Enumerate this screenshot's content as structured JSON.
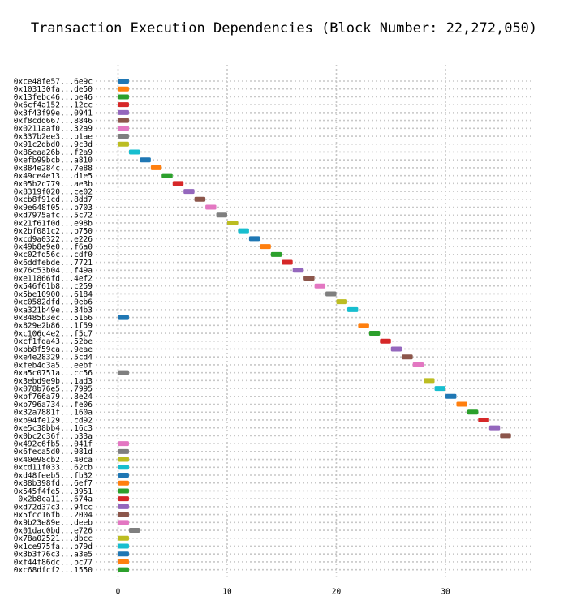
{
  "chart_data": {
    "type": "gantt",
    "title": "Transaction Execution Dependencies (Block Number: 22,272,050)",
    "xlabel": "",
    "ylabel": "",
    "xlim": [
      0,
      38
    ],
    "x_ticks": [
      0,
      10,
      20,
      30
    ],
    "grid": true,
    "colors": [
      "#1f77b4",
      "#ff7f0e",
      "#2ca02c",
      "#d62728",
      "#9467bd",
      "#8c564b",
      "#e377c2",
      "#7f7f7f",
      "#bcbd22",
      "#17becf"
    ],
    "bar_width": 1,
    "transactions": [
      {
        "label": "0xce48fe57...6e9c",
        "start": 0
      },
      {
        "label": "0x103130fa...de50",
        "start": 0
      },
      {
        "label": "0x13febc46...be46",
        "start": 0
      },
      {
        "label": "0x6cf4a152...12cc",
        "start": 0
      },
      {
        "label": "0x3f43f99e...0941",
        "start": 0
      },
      {
        "label": "0xf8cdd667...8846",
        "start": 0
      },
      {
        "label": "0x0211aaf0...32a9",
        "start": 0
      },
      {
        "label": "0x337b2ee3...b1ae",
        "start": 0
      },
      {
        "label": "0x91c2dbd0...9c3d",
        "start": 0
      },
      {
        "label": "0x86eaa26b...f2a9",
        "start": 1
      },
      {
        "label": "0xefb99bcb...a810",
        "start": 2
      },
      {
        "label": "0x884e284c...7e88",
        "start": 3
      },
      {
        "label": "0x49ce4e13...d1e5",
        "start": 4
      },
      {
        "label": "0x05b2c779...ae3b",
        "start": 5
      },
      {
        "label": "0x8319f020...ce02",
        "start": 6
      },
      {
        "label": "0xcb8f91cd...8dd7",
        "start": 7
      },
      {
        "label": "0x9e648f05...b703",
        "start": 8
      },
      {
        "label": "0xd7975afc...5c72",
        "start": 9
      },
      {
        "label": "0x21f61f0d...e98b",
        "start": 10
      },
      {
        "label": "0x2bf081c2...b750",
        "start": 11
      },
      {
        "label": "0xcd9a0322...e226",
        "start": 12
      },
      {
        "label": "0x49b8e9e0...f6a0",
        "start": 13
      },
      {
        "label": "0xc02fd56c...cdf0",
        "start": 14
      },
      {
        "label": "0x6ddfebde...7721",
        "start": 15
      },
      {
        "label": "0x76c53b04...f49a",
        "start": 16
      },
      {
        "label": "0xe11866fd...4ef2",
        "start": 17
      },
      {
        "label": "0x546f61b8...c259",
        "start": 18
      },
      {
        "label": "0x5be10900...6184",
        "start": 19
      },
      {
        "label": "0xc0582dfd...0eb6",
        "start": 20
      },
      {
        "label": "0xa321b49e...34b3",
        "start": 21
      },
      {
        "label": "0x8485b3ec...5166",
        "start": 0
      },
      {
        "label": "0x829e2b86...1f59",
        "start": 22
      },
      {
        "label": "0xc106c4e2...f5c7",
        "start": 23
      },
      {
        "label": "0xcf1fda43...52be",
        "start": 24
      },
      {
        "label": "0xbb8f59ca...9eae",
        "start": 25
      },
      {
        "label": "0xe4e28329...5cd4",
        "start": 26
      },
      {
        "label": "0xfeb4d3a5...eebf",
        "start": 27
      },
      {
        "label": "0xa5c0751a...cc56",
        "start": 0
      },
      {
        "label": "0x3ebd9e9b...1ad3",
        "start": 28
      },
      {
        "label": "0x078b76e5...7995",
        "start": 29
      },
      {
        "label": "0xbf766a79...8e24",
        "start": 30
      },
      {
        "label": "0xb796a734...fe06",
        "start": 31
      },
      {
        "label": "0x32a7881f...160a",
        "start": 32
      },
      {
        "label": "0xb94fe129...cd92",
        "start": 33
      },
      {
        "label": "0xe5c38bb4...16c3",
        "start": 34
      },
      {
        "label": "0x0bc2c36f...b33a",
        "start": 35
      },
      {
        "label": "0x492c6fb5...041f",
        "start": 0
      },
      {
        "label": "0x6feca5d0...081d",
        "start": 0
      },
      {
        "label": "0x40e98cb2...40ca",
        "start": 0
      },
      {
        "label": "0xcd11f033...62cb",
        "start": 0
      },
      {
        "label": "0xd48feeb5...fb32",
        "start": 0
      },
      {
        "label": "0x88b398fd...6ef7",
        "start": 0
      },
      {
        "label": "0x545f4fe5...3951",
        "start": 0
      },
      {
        "label": "0x2b8ca11...674a",
        "start": 0
      },
      {
        "label": "0xd72d37c3...94cc",
        "start": 0
      },
      {
        "label": "0x5fcc16fb...2004",
        "start": 0
      },
      {
        "label": "0x9b23e89e...deeb",
        "start": 0
      },
      {
        "label": "0x01dac0bd...e726",
        "start": 1
      },
      {
        "label": "0x78a02521...dbcc",
        "start": 0
      },
      {
        "label": "0x1ce975fa...b79d",
        "start": 0
      },
      {
        "label": "0x3b3f76c3...a3e5",
        "start": 0
      },
      {
        "label": "0xf44f86dc...bc77",
        "start": 0
      },
      {
        "label": "0xc68dfcf2...1550",
        "start": 0
      }
    ]
  }
}
